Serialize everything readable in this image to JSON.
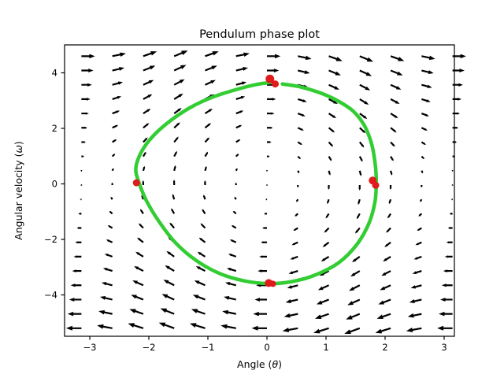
{
  "figure": {
    "background": "#ffffff"
  },
  "chart_data": {
    "type": "quiver_line",
    "title": "Pendulum phase plot",
    "xlabel": "Angle (θ)",
    "ylabel": "Angular velocity (ω)",
    "xlim": [
      -3.4267,
      3.1733
    ],
    "ylim": [
      -5.489,
      5.007
    ],
    "xticks": [
      -3,
      -2,
      -1,
      0,
      1,
      2,
      3
    ],
    "yticks": [
      -4,
      -2,
      0,
      2,
      4
    ],
    "grid": false,
    "legend": "none",
    "axis_color": "#000000",
    "vector_field": {
      "equation": "dtheta/dt = omega; domega/dt = -k*sin(theta)",
      "k": 4.0,
      "theta_min": -3.1416,
      "theta_max": 3.1416,
      "theta_n": 13,
      "omega_min": -5.2,
      "omega_max": 4.6,
      "omega_n": 20,
      "scale": 20,
      "color": "#000000"
    },
    "trajectory": {
      "color": "#32cd32",
      "line_width": 4.5,
      "points": [
        [
          0.26,
          3.6
        ],
        [
          0.55,
          3.5
        ],
        [
          0.9,
          3.28
        ],
        [
          1.2,
          2.99
        ],
        [
          1.46,
          2.62
        ],
        [
          1.65,
          2.1
        ],
        [
          1.77,
          1.45
        ],
        [
          1.83,
          0.75
        ],
        [
          1.85,
          0.1
        ],
        [
          1.83,
          -0.62
        ],
        [
          1.73,
          -1.4
        ],
        [
          1.53,
          -2.16
        ],
        [
          1.22,
          -2.83
        ],
        [
          0.82,
          -3.28
        ],
        [
          0.42,
          -3.52
        ],
        [
          0.04,
          -3.59
        ],
        [
          -0.37,
          -3.5
        ],
        [
          -0.79,
          -3.24
        ],
        [
          -1.19,
          -2.77
        ],
        [
          -1.54,
          -2.14
        ],
        [
          -1.83,
          -1.35
        ],
        [
          -2.04,
          -0.61
        ],
        [
          -2.16,
          0.0
        ],
        [
          -2.22,
          0.45
        ],
        [
          -2.19,
          0.85
        ],
        [
          -2.07,
          1.35
        ],
        [
          -1.88,
          1.83
        ],
        [
          -1.62,
          2.3
        ],
        [
          -1.3,
          2.75
        ],
        [
          -0.95,
          3.1
        ],
        [
          -0.55,
          3.38
        ],
        [
          -0.18,
          3.58
        ],
        [
          0.08,
          3.66
        ]
      ]
    },
    "markers": {
      "color": "#e01b1b",
      "points": [
        {
          "theta": 0.05,
          "omega": 3.78,
          "r": 5.5
        },
        {
          "theta": 0.14,
          "omega": 3.6,
          "r": 4.5
        },
        {
          "theta": 1.79,
          "omega": 0.12,
          "r": 5.0
        },
        {
          "theta": 1.84,
          "omega": -0.05,
          "r": 4.5
        },
        {
          "theta": -2.21,
          "omega": 0.04,
          "r": 4.5
        },
        {
          "theta": 0.03,
          "omega": -3.57,
          "r": 5.0
        },
        {
          "theta": 0.1,
          "omega": -3.6,
          "r": 4.0
        }
      ]
    }
  }
}
